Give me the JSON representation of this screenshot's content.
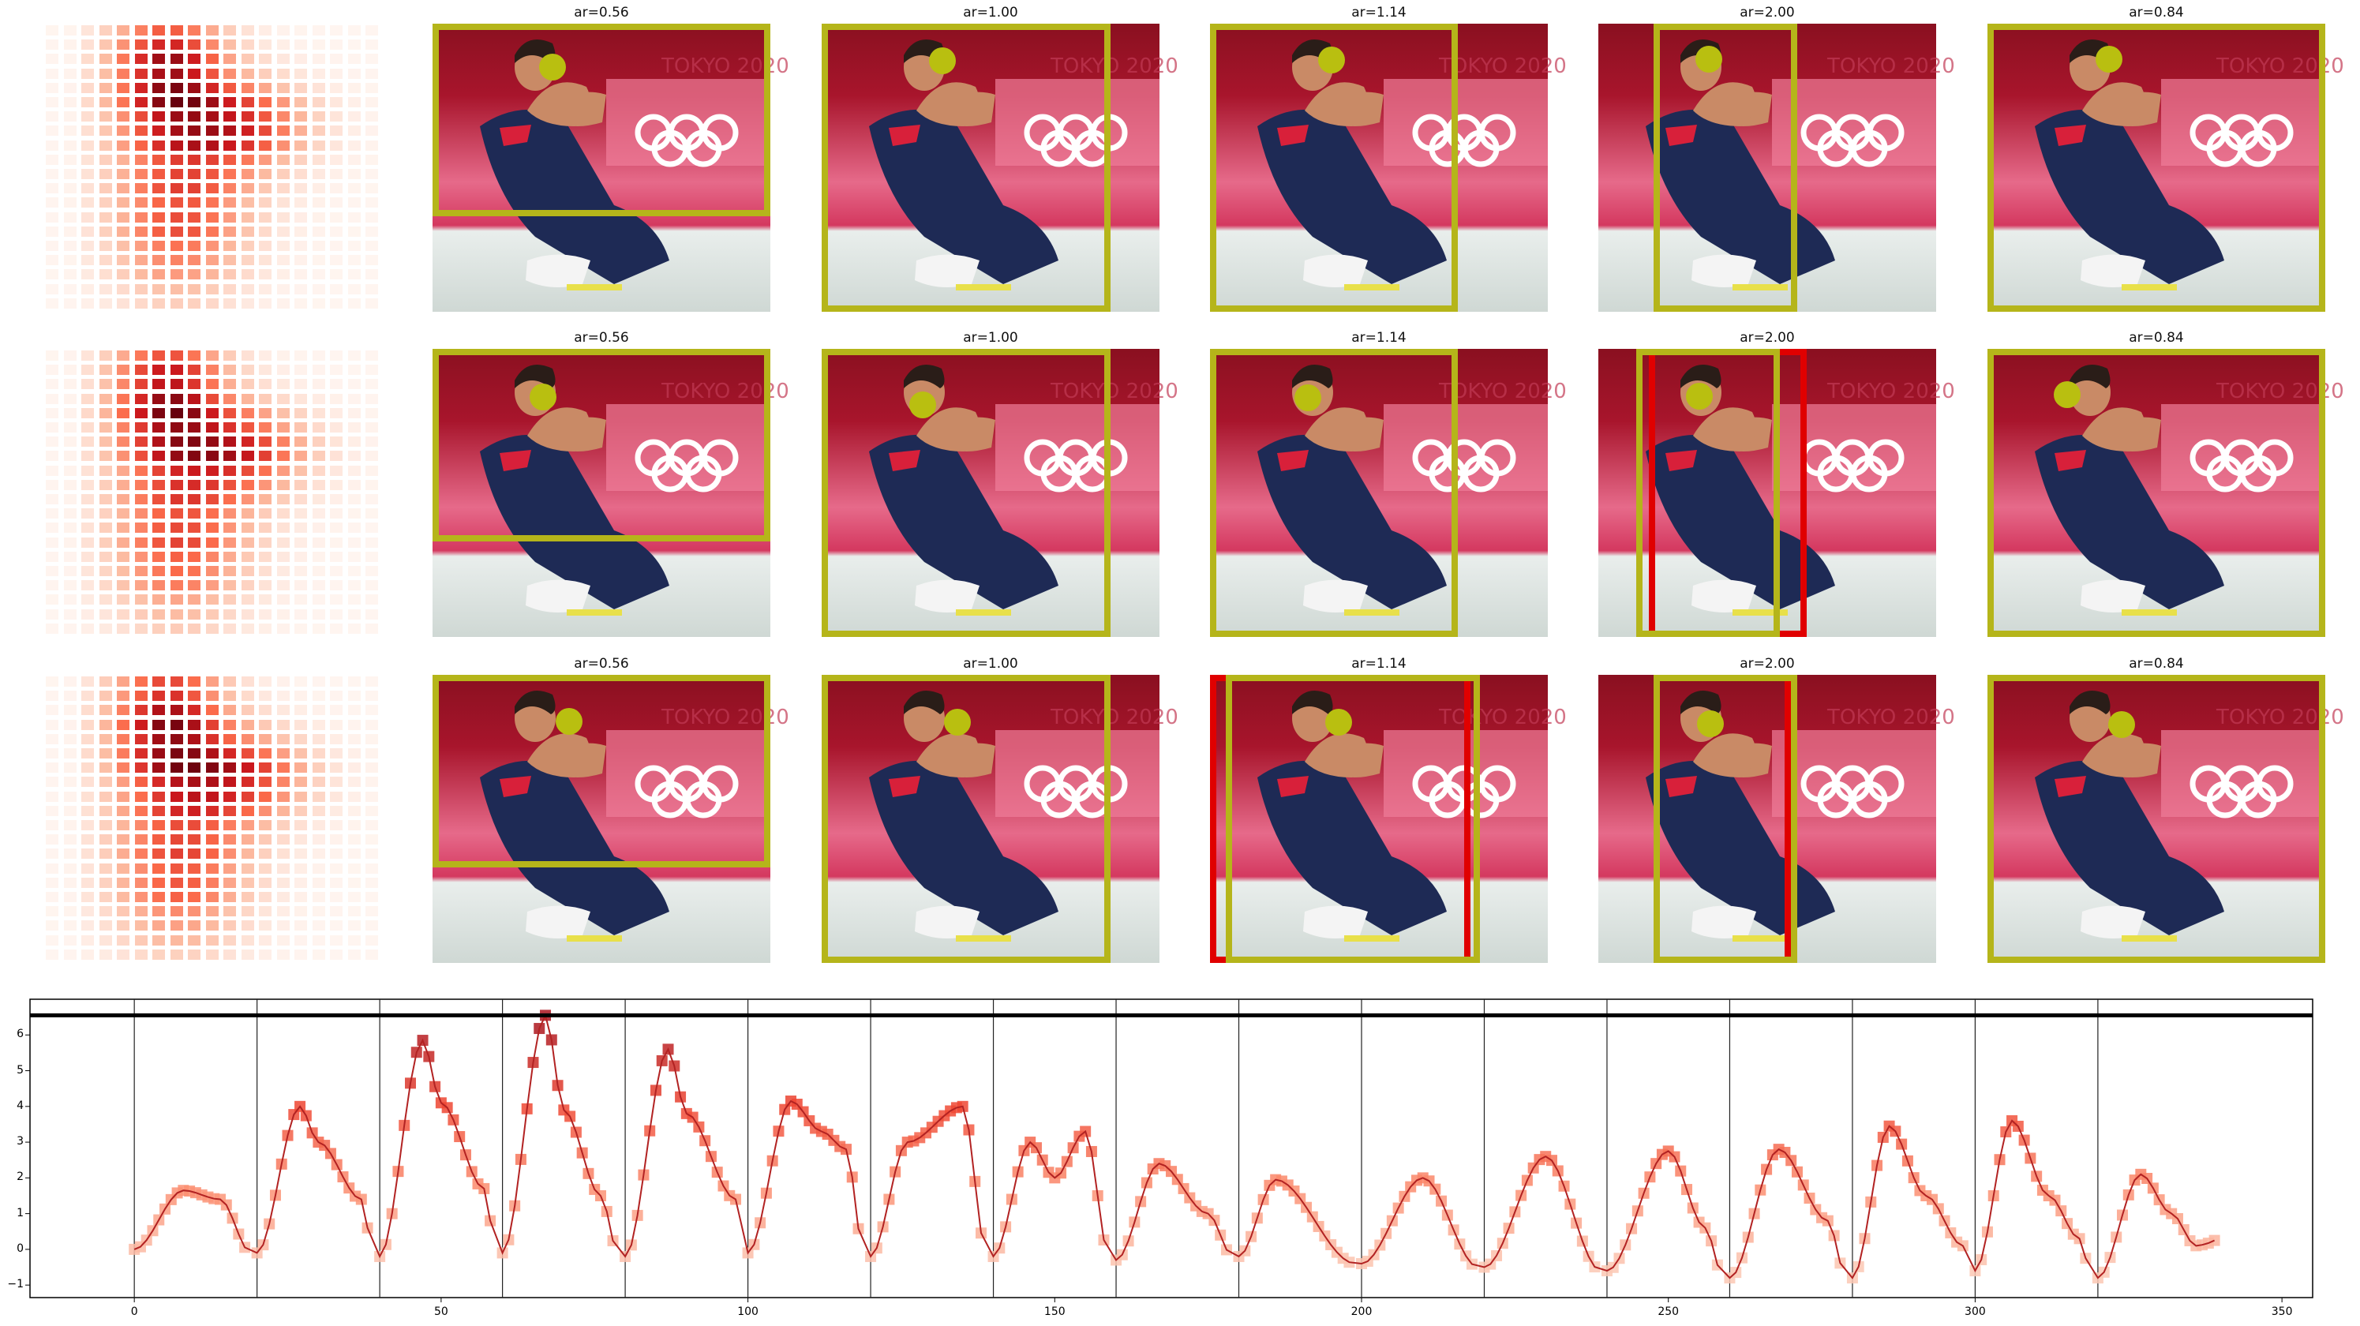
{
  "panel_titles": [
    "ar=0.56",
    "ar=1.00",
    "ar=1.14",
    "ar=2.00",
    "ar=0.84"
  ],
  "photo_banner_text": "TOKYO 2020",
  "colors": {
    "crop_box": "#b5b51a",
    "crop_box_alt": "#e00000",
    "marker": "#b9bf10",
    "line": "#b22222",
    "threshold": "#000000"
  },
  "chart_data": {
    "type": "line",
    "xlim": [
      -17,
      355
    ],
    "ylim": [
      -1.35,
      7.0
    ],
    "xticks": [
      0,
      50,
      100,
      150,
      200,
      250,
      300,
      350
    ],
    "yticks": [
      -1,
      0,
      1,
      2,
      3,
      4,
      5,
      6
    ],
    "vlines": [
      0,
      20,
      40,
      60,
      80,
      100,
      120,
      140,
      160,
      180,
      200,
      220,
      240,
      260,
      280,
      300,
      320
    ],
    "threshold_y": 6.55,
    "peaks": [
      {
        "x0": 0,
        "peak_x": 8,
        "peak_y": 1.65,
        "sub": [
          [
            14,
            1.4
          ]
        ],
        "end_y": -0.1
      },
      {
        "x0": 20,
        "peak_x": 27,
        "peak_y": 4.0,
        "sub": [
          [
            30,
            3.0
          ],
          [
            37,
            1.4
          ]
        ],
        "end_y": -0.2
      },
      {
        "x0": 40,
        "peak_x": 47,
        "peak_y": 5.85,
        "sub": [
          [
            50,
            4.1
          ],
          [
            57,
            1.7
          ]
        ],
        "end_y": -0.1
      },
      {
        "x0": 60,
        "peak_x": 67,
        "peak_y": 6.55,
        "sub": [
          [
            70,
            3.9
          ],
          [
            76,
            1.5
          ]
        ],
        "end_y": -0.2
      },
      {
        "x0": 80,
        "peak_x": 87,
        "peak_y": 5.6,
        "sub": [
          [
            90,
            3.8
          ],
          [
            98,
            1.4
          ]
        ],
        "end_y": -0.1
      },
      {
        "x0": 100,
        "peak_x": 107,
        "peak_y": 4.15,
        "sub": [
          [
            112,
            3.3
          ],
          [
            116,
            2.8
          ]
        ],
        "end_y": -0.2
      },
      {
        "x0": 120,
        "peak_x": 126,
        "peak_y": 3.0,
        "sub": [
          [
            135,
            4.0
          ]
        ],
        "end_y": -0.2
      },
      {
        "x0": 140,
        "peak_x": 146,
        "peak_y": 3.0,
        "sub": [
          [
            150,
            2.0
          ],
          [
            155,
            3.3
          ]
        ],
        "end_y": -0.3
      },
      {
        "x0": 160,
        "peak_x": 167,
        "peak_y": 2.4,
        "sub": [
          [
            175,
            1.0
          ]
        ],
        "end_y": -0.2
      },
      {
        "x0": 180,
        "peak_x": 186,
        "peak_y": 1.95,
        "sub": [],
        "end_y": -0.4
      },
      {
        "x0": 200,
        "peak_x": 210,
        "peak_y": 2.0,
        "sub": [],
        "end_y": -0.5
      },
      {
        "x0": 220,
        "peak_x": 230,
        "peak_y": 2.6,
        "sub": [],
        "end_y": -0.6
      },
      {
        "x0": 240,
        "peak_x": 250,
        "peak_y": 2.75,
        "sub": [
          [
            256,
            0.6
          ]
        ],
        "end_y": -0.8
      },
      {
        "x0": 260,
        "peak_x": 268,
        "peak_y": 2.8,
        "sub": [
          [
            276,
            0.8
          ]
        ],
        "end_y": -0.8
      },
      {
        "x0": 280,
        "peak_x": 286,
        "peak_y": 3.45,
        "sub": [
          [
            292,
            1.5
          ],
          [
            298,
            0.1
          ]
        ],
        "end_y": -0.6
      },
      {
        "x0": 300,
        "peak_x": 306,
        "peak_y": 3.6,
        "sub": [
          [
            312,
            1.5
          ],
          [
            317,
            0.3
          ]
        ],
        "end_y": -0.8
      },
      {
        "x0": 320,
        "peak_x": 327,
        "peak_y": 2.1,
        "sub": [
          [
            332,
            1.0
          ],
          [
            336,
            0.1
          ]
        ],
        "end_y": 0.2
      }
    ]
  }
}
